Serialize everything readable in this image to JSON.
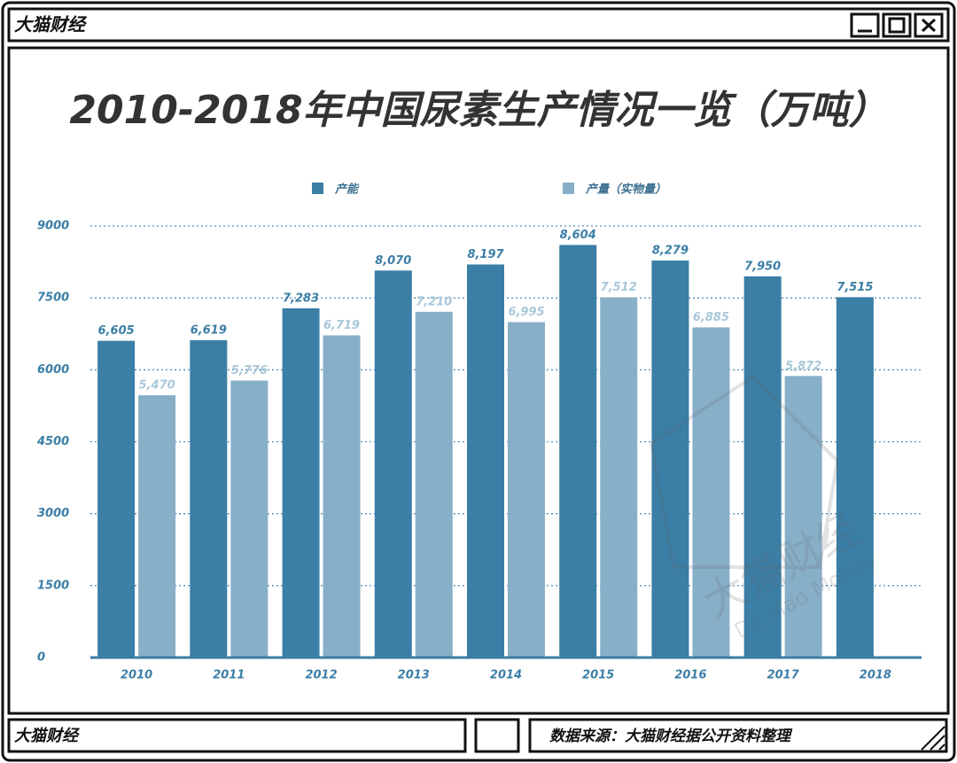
{
  "header": {
    "brand": "大猫财经"
  },
  "chart_data": {
    "type": "bar",
    "title": "2010-2018年中国尿素生产情况一览（万吨）",
    "categories": [
      "2010",
      "2011",
      "2012",
      "2013",
      "2014",
      "2015",
      "2016",
      "2017",
      "2018"
    ],
    "series": [
      {
        "name": "产能",
        "color": "#3b7ea6",
        "values": [
          6605,
          6619,
          7283,
          8070,
          8197,
          8604,
          8279,
          7950,
          7515
        ],
        "value_labels": [
          "6,605",
          "6,619",
          "7,283",
          "8,070",
          "8,197",
          "8,604",
          "8,279",
          "7,950",
          "7,515"
        ]
      },
      {
        "name": "产量（实物量）",
        "color": "#88afc8",
        "values": [
          5470,
          5776,
          6719,
          7210,
          6995,
          7512,
          6885,
          5872,
          null
        ],
        "value_labels": [
          "5,470",
          "5,776",
          "6,719",
          "7,210",
          "6,995",
          "7,512",
          "6,885",
          "5,872",
          null
        ]
      }
    ],
    "ylim": [
      0,
      9000
    ],
    "yticks": [
      0,
      1500,
      3000,
      4500,
      6000,
      7500,
      9000
    ],
    "grid": true,
    "legend": "top"
  },
  "watermark": {
    "cn": "大猫财经",
    "en": "Da Mao Money"
  },
  "footer": {
    "brand": "大猫财经",
    "source": "数据来源：大猫财经据公开资料整理"
  }
}
